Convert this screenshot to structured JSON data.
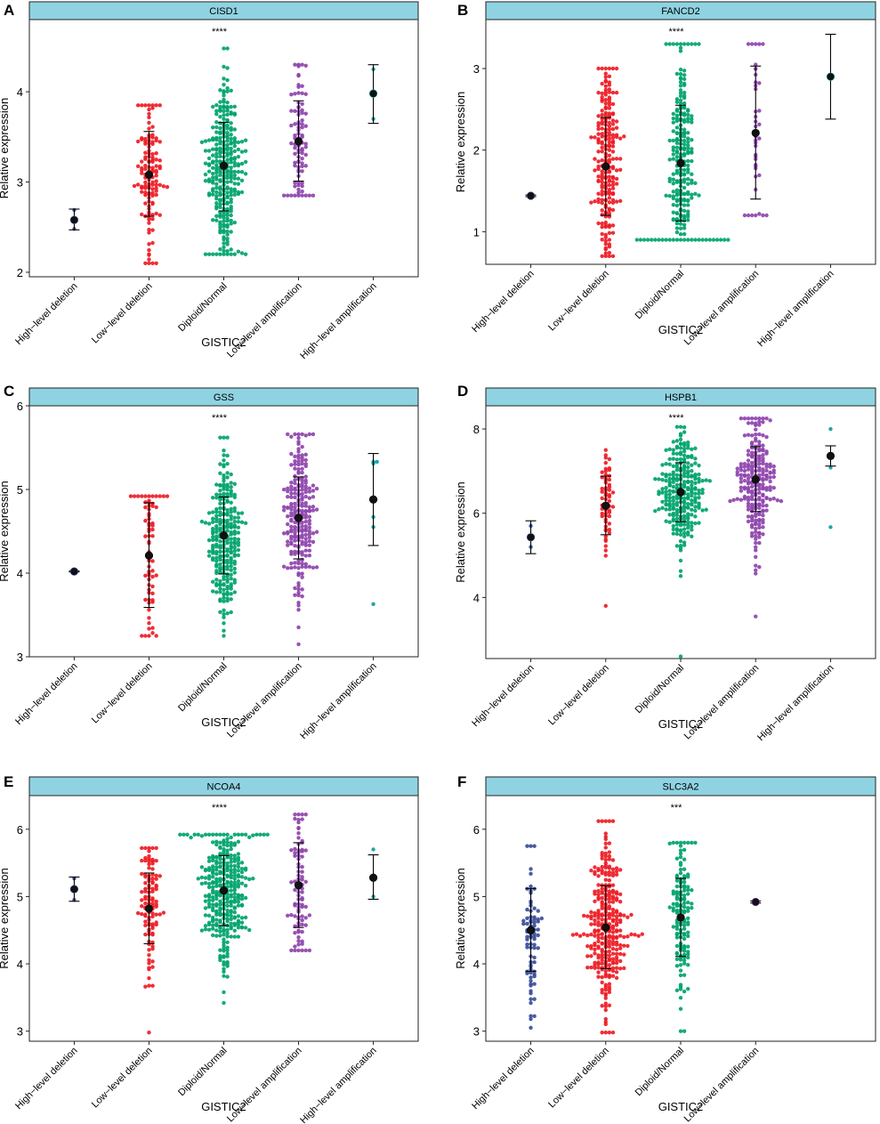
{
  "figure": {
    "ylabel": "Relative expression",
    "xlabel": "GISTIC2"
  },
  "colors": {
    "High-level deletion": "#3b4e9a",
    "Low-level deletion": "#ee1c25",
    "Diploid/Normal": "#00a36c",
    "Low-level amplification": "#8e44ad",
    "High-level amplification": "#0c9e9e",
    "strip": "#8fd3e2",
    "mean_dot": "#111111"
  },
  "chart_data": [
    {
      "panel": "A",
      "title": "CISD1",
      "type": "scatter",
      "subtype": "beeswarm-with-mean-sd",
      "significance": "****",
      "ylim": [
        1.95,
        4.8
      ],
      "yticks": [
        "2",
        "3",
        "4"
      ],
      "xlabel": "GISTIC2",
      "ylabel": "Relative expression",
      "groups": [
        {
          "name": "High−level deletion",
          "key": "High-level deletion",
          "mean": 2.58,
          "sd_low": 2.47,
          "sd_high": 2.7,
          "n": 2,
          "min": 2.48,
          "max": 2.69,
          "mean_on_top": true
        },
        {
          "name": "Low−level deletion",
          "key": "Low-level deletion",
          "mean": 3.08,
          "sd_low": 2.62,
          "sd_high": 3.56,
          "n": 130,
          "min": 2.1,
          "max": 3.85
        },
        {
          "name": "Diploid/Normal",
          "key": "Diploid/Normal",
          "mean": 3.18,
          "sd_low": 2.68,
          "sd_high": 3.66,
          "n": 300,
          "min": 2.2,
          "max": 4.48
        },
        {
          "name": "Low−level amplification",
          "key": "Low-level amplification",
          "mean": 3.45,
          "sd_low": 3.01,
          "sd_high": 3.9,
          "n": 90,
          "min": 2.85,
          "max": 4.3
        },
        {
          "name": "High−level amplification",
          "key": "High-level amplification",
          "mean": 3.98,
          "sd_low": 3.65,
          "sd_high": 4.3,
          "n": 2,
          "min": 3.7,
          "max": 4.25,
          "mean_on_top": true
        }
      ]
    },
    {
      "panel": "B",
      "title": "FANCD2",
      "type": "scatter",
      "subtype": "beeswarm-with-mean-sd",
      "significance": "****",
      "ylim": [
        0.6,
        3.6
      ],
      "yticks": [
        "1",
        "2",
        "3"
      ],
      "xlabel": "GISTIC2",
      "ylabel": "Relative expression",
      "groups": [
        {
          "name": "High−level deletion",
          "key": "High-level deletion",
          "mean": 1.44,
          "sd_low": 1.43,
          "sd_high": 1.45,
          "n": 1,
          "min": 1.44,
          "max": 1.44,
          "mean_on_top": true
        },
        {
          "name": "Low−level deletion",
          "key": "Low-level deletion",
          "mean": 1.8,
          "sd_low": 1.2,
          "sd_high": 2.4,
          "n": 220,
          "min": 0.7,
          "max": 3.0
        },
        {
          "name": "Diploid/Normal",
          "key": "Diploid/Normal",
          "mean": 1.84,
          "sd_low": 1.13,
          "sd_high": 2.55,
          "n": 240,
          "min": 0.9,
          "max": 3.3
        },
        {
          "name": "Low−level amplification",
          "key": "Low-level amplification",
          "mean": 2.21,
          "sd_low": 1.4,
          "sd_high": 3.03,
          "n": 40,
          "min": 1.2,
          "max": 3.3
        },
        {
          "name": "High−level amplification",
          "key": "High-level amplification",
          "mean": 2.9,
          "sd_low": 2.38,
          "sd_high": 3.42,
          "n": 1,
          "min": 2.9,
          "max": 2.9,
          "mean_on_top": true
        }
      ]
    },
    {
      "panel": "C",
      "title": "GSS",
      "type": "scatter",
      "subtype": "beeswarm-with-mean-sd",
      "significance": "****",
      "ylim": [
        3.0,
        6.0
      ],
      "yticks": [
        "3",
        "4",
        "5",
        "6"
      ],
      "xlabel": "GISTIC2",
      "ylabel": "Relative expression",
      "groups": [
        {
          "name": "High−level deletion",
          "key": "High-level deletion",
          "mean": 4.02,
          "sd_low": 4.015,
          "sd_high": 4.025,
          "n": 1,
          "min": 4.02,
          "max": 4.02,
          "mean_on_top": true
        },
        {
          "name": "Low−level deletion",
          "key": "Low-level deletion",
          "mean": 4.21,
          "sd_low": 3.59,
          "sd_high": 4.84,
          "n": 70,
          "min": 3.25,
          "max": 4.92
        },
        {
          "name": "Diploid/Normal",
          "key": "Diploid/Normal",
          "mean": 4.45,
          "sd_low": 3.99,
          "sd_high": 4.91,
          "n": 260,
          "min": 3.25,
          "max": 5.62
        },
        {
          "name": "Low−level amplification",
          "key": "Low-level amplification",
          "mean": 4.66,
          "sd_low": 4.17,
          "sd_high": 5.15,
          "n": 230,
          "min": 3.15,
          "max": 5.66
        },
        {
          "name": "High−level amplification",
          "key": "High-level amplification",
          "mean": 4.88,
          "sd_low": 4.33,
          "sd_high": 5.43,
          "n": 6,
          "min": 3.63,
          "max": 5.33
        }
      ]
    },
    {
      "panel": "D",
      "title": "HSPB1",
      "type": "scatter",
      "subtype": "beeswarm-with-mean-sd",
      "significance": "****",
      "ylim": [
        2.55,
        8.55
      ],
      "yticks": [
        "4",
        "6",
        "8"
      ],
      "xlabel": "GISTIC2",
      "ylabel": "Relative expression",
      "groups": [
        {
          "name": "High−level deletion",
          "key": "High-level deletion",
          "mean": 5.43,
          "sd_low": 5.04,
          "sd_high": 5.82,
          "n": 2,
          "min": 5.2,
          "max": 5.7,
          "mean_on_top": true
        },
        {
          "name": "Low−level deletion",
          "key": "Low-level deletion",
          "mean": 6.18,
          "sd_low": 5.49,
          "sd_high": 6.88,
          "n": 60,
          "min": 3.8,
          "max": 7.5
        },
        {
          "name": "Diploid/Normal",
          "key": "Diploid/Normal",
          "mean": 6.5,
          "sd_low": 5.8,
          "sd_high": 7.2,
          "n": 260,
          "min": 2.6,
          "max": 8.05
        },
        {
          "name": "Low−level amplification",
          "key": "Low-level amplification",
          "mean": 6.8,
          "sd_low": 6.04,
          "sd_high": 7.58,
          "n": 230,
          "min": 3.55,
          "max": 8.25
        },
        {
          "name": "High−level amplification",
          "key": "High-level amplification",
          "mean": 7.36,
          "sd_low": 7.12,
          "sd_high": 7.6,
          "n": 4,
          "min": 5.67,
          "max": 8.0
        }
      ]
    },
    {
      "panel": "E",
      "title": "NCOA4",
      "type": "scatter",
      "subtype": "beeswarm-with-mean-sd",
      "significance": "****",
      "ylim": [
        2.85,
        6.5
      ],
      "yticks": [
        "3",
        "4",
        "5",
        "6"
      ],
      "xlabel": "GISTIC2",
      "ylabel": "Relative expression",
      "groups": [
        {
          "name": "High−level deletion",
          "key": "High-level deletion",
          "mean": 5.11,
          "sd_low": 4.93,
          "sd_high": 5.29,
          "n": 2,
          "min": 4.95,
          "max": 5.27,
          "mean_on_top": true
        },
        {
          "name": "Low−level deletion",
          "key": "Low-level deletion",
          "mean": 4.82,
          "sd_low": 4.3,
          "sd_high": 5.35,
          "n": 110,
          "min": 2.98,
          "max": 5.72
        },
        {
          "name": "Diploid/Normal",
          "key": "Diploid/Normal",
          "mean": 5.09,
          "sd_low": 4.57,
          "sd_high": 5.61,
          "n": 330,
          "min": 3.42,
          "max": 5.92
        },
        {
          "name": "Low−level amplification",
          "key": "Low-level amplification",
          "mean": 5.17,
          "sd_low": 4.54,
          "sd_high": 5.8,
          "n": 90,
          "min": 4.2,
          "max": 6.22
        },
        {
          "name": "High−level amplification",
          "key": "High-level amplification",
          "mean": 5.28,
          "sd_low": 4.96,
          "sd_high": 5.62,
          "n": 2,
          "min": 5.0,
          "max": 5.7
        }
      ]
    },
    {
      "panel": "F",
      "title": "SLC3A2",
      "type": "scatter",
      "subtype": "beeswarm-with-mean-sd",
      "significance": "***",
      "ylim": [
        2.85,
        6.5
      ],
      "yticks": [
        "3",
        "4",
        "5",
        "6"
      ],
      "xlabel": "GISTIC2",
      "ylabel": "Relative expression",
      "groups": [
        {
          "name": "High−level deletion",
          "key": "High-level deletion",
          "mean": 4.5,
          "sd_low": 3.89,
          "sd_high": 5.12,
          "n": 80,
          "min": 3.05,
          "max": 5.75
        },
        {
          "name": "Low−level deletion",
          "key": "Low-level deletion",
          "mean": 4.54,
          "sd_low": 3.93,
          "sd_high": 5.16,
          "n": 300,
          "min": 2.98,
          "max": 6.12
        },
        {
          "name": "Diploid/Normal",
          "key": "Diploid/Normal",
          "mean": 4.69,
          "sd_low": 4.11,
          "sd_high": 5.27,
          "n": 140,
          "min": 3.0,
          "max": 5.8
        },
        {
          "name": "Low−level amplification",
          "key": "Low-level amplification",
          "mean": 4.92,
          "sd_low": 4.905,
          "sd_high": 4.935,
          "n": 1,
          "min": 4.92,
          "max": 4.92,
          "mean_on_top": true
        }
      ]
    }
  ]
}
